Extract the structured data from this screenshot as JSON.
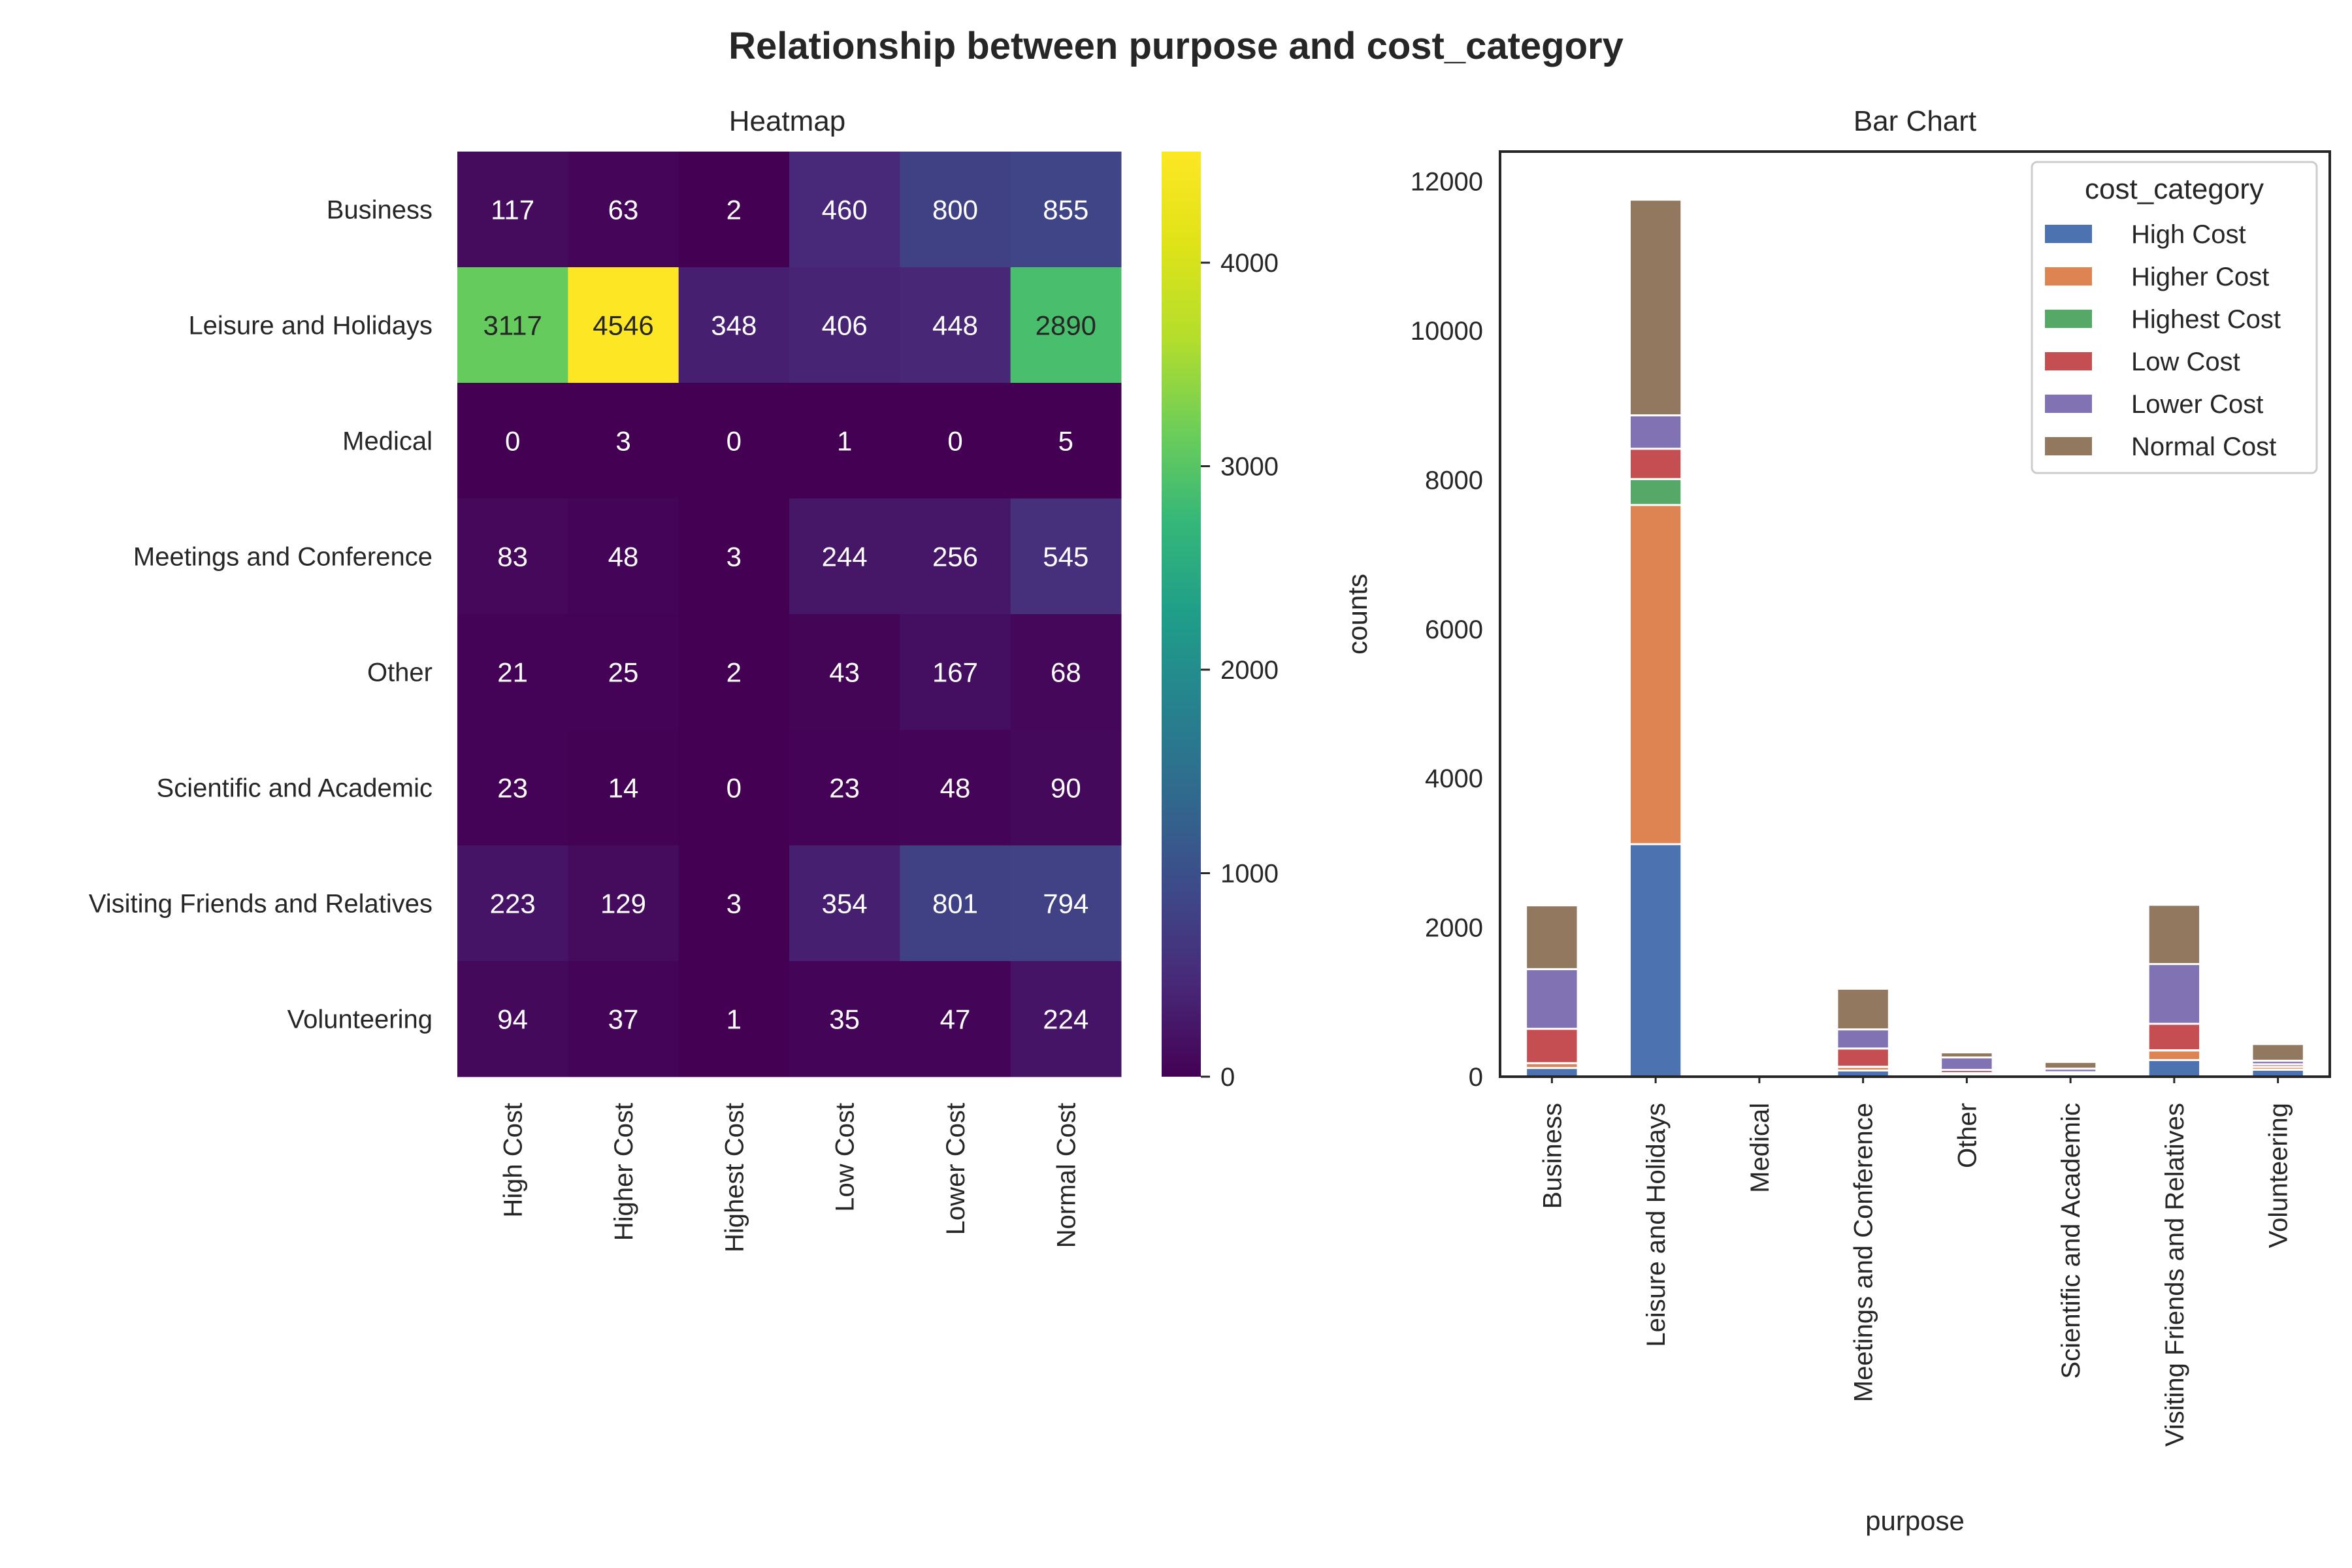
{
  "figure": {
    "title": "Relationship between purpose and cost_category"
  },
  "chart_data": [
    {
      "type": "heatmap",
      "title": "Heatmap",
      "rows": [
        "Business",
        "Leisure and Holidays",
        "Medical",
        "Meetings and Conference",
        "Other",
        "Scientific and Academic",
        "Visiting Friends and Relatives",
        "Volunteering"
      ],
      "columns": [
        "High Cost",
        "Higher Cost",
        "Highest Cost",
        "Low Cost",
        "Lower Cost",
        "Normal Cost"
      ],
      "values": [
        [
          117,
          63,
          2,
          460,
          800,
          855
        ],
        [
          3117,
          4546,
          348,
          406,
          448,
          2890
        ],
        [
          0,
          3,
          0,
          1,
          0,
          5
        ],
        [
          83,
          48,
          3,
          244,
          256,
          545
        ],
        [
          21,
          25,
          2,
          43,
          167,
          68
        ],
        [
          23,
          14,
          0,
          23,
          48,
          90
        ],
        [
          223,
          129,
          3,
          354,
          801,
          794
        ],
        [
          94,
          37,
          1,
          35,
          47,
          224
        ]
      ],
      "colormap": "viridis",
      "colorbar": {
        "range": [
          0,
          4546
        ],
        "ticks": [
          0,
          1000,
          2000,
          3000,
          4000
        ]
      }
    },
    {
      "type": "bar",
      "stacked": true,
      "title": "Bar Chart",
      "xlabel": "purpose",
      "ylabel": "counts",
      "categories": [
        "Business",
        "Leisure and Holidays",
        "Medical",
        "Meetings and Conference",
        "Other",
        "Scientific and Academic",
        "Visiting Friends and Relatives",
        "Volunteering"
      ],
      "ylim": [
        0,
        12400
      ],
      "yticks": [
        0,
        2000,
        4000,
        6000,
        8000,
        10000,
        12000
      ],
      "legend": {
        "title": "cost_category",
        "position": "top-right"
      },
      "series": [
        {
          "name": "High Cost",
          "color": "#4c72b0",
          "values": [
            117,
            3117,
            0,
            83,
            21,
            23,
            223,
            94
          ]
        },
        {
          "name": "Higher Cost",
          "color": "#dd8452",
          "values": [
            63,
            4546,
            3,
            48,
            25,
            14,
            129,
            37
          ]
        },
        {
          "name": "Highest Cost",
          "color": "#55a868",
          "values": [
            2,
            348,
            0,
            3,
            2,
            0,
            3,
            1
          ]
        },
        {
          "name": "Low Cost",
          "color": "#c44e52",
          "values": [
            460,
            406,
            1,
            244,
            43,
            23,
            354,
            35
          ]
        },
        {
          "name": "Lower Cost",
          "color": "#8172b3",
          "values": [
            800,
            448,
            0,
            256,
            167,
            48,
            801,
            47
          ]
        },
        {
          "name": "Normal Cost",
          "color": "#937860",
          "values": [
            855,
            2890,
            5,
            545,
            68,
            90,
            794,
            224
          ]
        }
      ]
    }
  ]
}
